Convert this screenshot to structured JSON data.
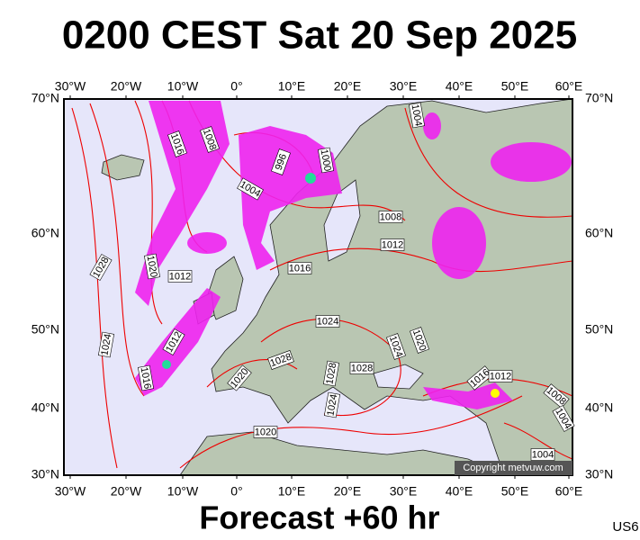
{
  "header": {
    "title": "0200 CEST Sat 20 Sep 2025"
  },
  "lon_labels": [
    "30°W",
    "20°W",
    "10°W",
    "0°",
    "10°E",
    "20°E",
    "30°E",
    "40°E",
    "50°E",
    "60°E"
  ],
  "lat_labels": [
    "70°N",
    "60°N",
    "50°N",
    "40°N",
    "30°N"
  ],
  "isobar_labels": [
    "1016",
    "1008",
    "996",
    "1000",
    "1004",
    "1004",
    "1008",
    "1012",
    "1028",
    "1020",
    "1012",
    "1016",
    "1024",
    "1020",
    "1024",
    "1012",
    "1024",
    "1016",
    "1028",
    "1028",
    "1028",
    "1020",
    "1024",
    "1016",
    "1012",
    "1008",
    "1004",
    "1020",
    "1004"
  ],
  "copyright": "Copyright metvuw.com",
  "footer": {
    "forecast": "Forecast +60 hr",
    "code": "US6"
  }
}
